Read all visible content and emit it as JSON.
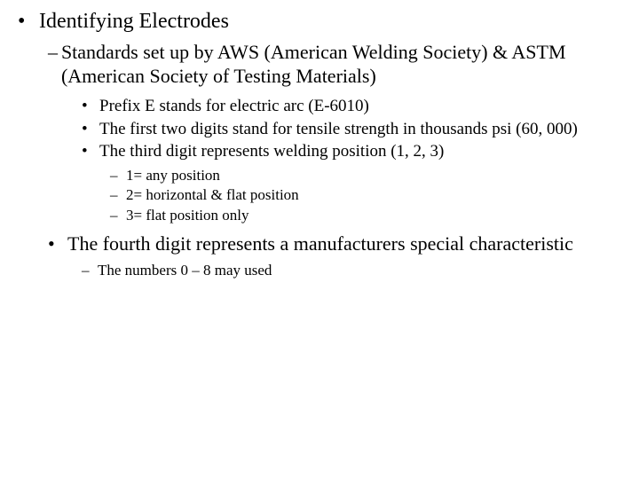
{
  "title": "Identifying Electrodes",
  "sub1": "Standards set up by AWS (American Welding Society) & ASTM (American Society of Testing Materials)",
  "b1": "Prefix E stands for electric arc  (E-6010)",
  "b2": "The first two digits stand for tensile strength in thousands psi (60, 000)",
  "b3": "The third digit represents welding position (1, 2, 3)",
  "p1": "1= any position",
  "p2": "2= horizontal & flat position",
  "p3": "3= flat position only",
  "b4": "The fourth digit represents a manufacturers special characteristic",
  "b4sub": "The numbers 0 – 8 may used",
  "bullets": {
    "dot": "•",
    "dash": "–"
  }
}
